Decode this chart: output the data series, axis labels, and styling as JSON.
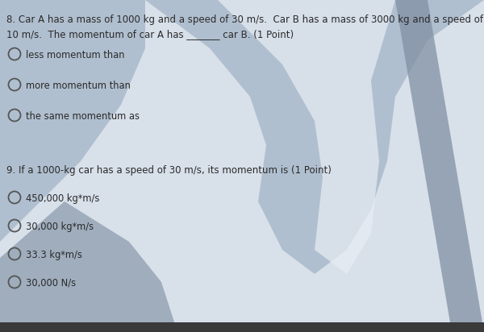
{
  "bg_color": "#b0bfcf",
  "text_color": "#2a2a2a",
  "q8_line1": "8. Car A has a mass of 1000 kg and a speed of 30 m/s.  Car B has a mass of 3000 kg and a speed of",
  "q8_line2": "10 m/s.  The momentum of car A has _______ car B. (1 Point)",
  "q8_options": [
    "less momentum than",
    "more momentum than",
    "the same momentum as"
  ],
  "q9_header": "9. If a 1000-kg car has a speed of 30 m/s, its momentum is (1 Point)",
  "q9_options": [
    "450,000 kg*m/s",
    "30,000 kg*m/s",
    "33.3 kg*m/s",
    "30,000 N/s"
  ],
  "font_size_header": 8.5,
  "font_size_option": 8.3,
  "figsize": [
    6.0,
    4.12
  ],
  "dpi": 100,
  "swoosh_color": "#cdd7e4",
  "slash_color": "#8090a4",
  "left_arm_color": "#8898aa"
}
